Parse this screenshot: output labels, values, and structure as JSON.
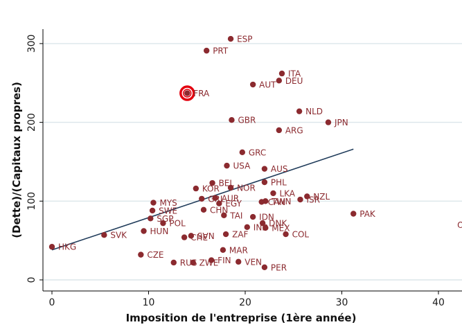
{
  "chart_data": {
    "type": "scatter",
    "xlabel": "Imposition de l'entreprise (1ère année)",
    "ylabel": "(Dette)/(Capitaux propres)",
    "xlim": [
      -1.8,
      41.5
    ],
    "ylim": [
      -4,
      320
    ],
    "x_ticks": [
      0,
      10,
      20,
      30,
      40
    ],
    "y_ticks": [
      0,
      100,
      200,
      300
    ],
    "grid": "horizontal",
    "colors": {
      "point": "#8b2a2f",
      "label": "#8b2a2f",
      "fit_line": "#1f3b5a",
      "highlight": "#e3000f",
      "grid": "#dce6ea",
      "plot_bg": "#ffffff"
    },
    "fit_line": {
      "x": [
        0,
        31.2
      ],
      "y": [
        38,
        166
      ]
    },
    "highlight": "FRA",
    "points": [
      {
        "label": "ESP",
        "x": 18.5,
        "y": 306
      },
      {
        "label": "PRT",
        "x": 16.0,
        "y": 291
      },
      {
        "label": "ITA",
        "x": 23.8,
        "y": 262
      },
      {
        "label": "DEU",
        "x": 23.5,
        "y": 253
      },
      {
        "label": "AUT",
        "x": 20.8,
        "y": 248
      },
      {
        "label": "FRA",
        "x": 14.0,
        "y": 237
      },
      {
        "label": "NLD",
        "x": 25.6,
        "y": 214
      },
      {
        "label": "GBR",
        "x": 18.6,
        "y": 203
      },
      {
        "label": "JPN",
        "x": 28.6,
        "y": 200
      },
      {
        "label": "ARG",
        "x": 23.5,
        "y": 190
      },
      {
        "label": "GRC",
        "x": 19.7,
        "y": 162
      },
      {
        "label": "USA",
        "x": 18.1,
        "y": 145
      },
      {
        "label": "AUS",
        "x": 22.0,
        "y": 141
      },
      {
        "label": "BEL",
        "x": 16.6,
        "y": 123
      },
      {
        "label": "PHL",
        "x": 22.0,
        "y": 124
      },
      {
        "label": "KOR",
        "x": 14.9,
        "y": 116
      },
      {
        "label": "NOR",
        "x": 18.5,
        "y": 117
      },
      {
        "label": "LKA",
        "x": 22.9,
        "y": 110
      },
      {
        "label": "NZL",
        "x": 26.4,
        "y": 106
      },
      {
        "label": "AUR",
        "x": 16.9,
        "y": 104
      },
      {
        "label": "ISR",
        "x": 25.7,
        "y": 102
      },
      {
        "label": "GRL",
        "x": 15.5,
        "y": 103
      },
      {
        "label": "TWN",
        "x": 22.1,
        "y": 100
      },
      {
        "label": "CAN",
        "x": 21.7,
        "y": 99
      },
      {
        "label": "EGY",
        "x": 17.3,
        "y": 97
      },
      {
        "label": "MYS",
        "x": 10.5,
        "y": 98
      },
      {
        "label": "SWE",
        "x": 10.4,
        "y": 88
      },
      {
        "label": "CHN",
        "x": 15.7,
        "y": 89
      },
      {
        "label": "PAK",
        "x": 31.2,
        "y": 84
      },
      {
        "label": "TAI",
        "x": 17.8,
        "y": 82
      },
      {
        "label": "IDN",
        "x": 20.8,
        "y": 80
      },
      {
        "label": "SGP",
        "x": 10.2,
        "y": 78
      },
      {
        "label": "DNK",
        "x": 21.8,
        "y": 72
      },
      {
        "label": "POL",
        "x": 11.5,
        "y": 72
      },
      {
        "label": "IND",
        "x": 20.2,
        "y": 67
      },
      {
        "label": "MEX",
        "x": 22.1,
        "y": 66
      },
      {
        "label": "HUN",
        "x": 9.5,
        "y": 62
      },
      {
        "label": "ZAF",
        "x": 18.0,
        "y": 58
      },
      {
        "label": "COL",
        "x": 24.2,
        "y": 58
      },
      {
        "label": "SVK",
        "x": 5.4,
        "y": 57
      },
      {
        "label": "SVN",
        "x": 14.4,
        "y": 56
      },
      {
        "label": "CHE",
        "x": 13.7,
        "y": 54
      },
      {
        "label": "HKG",
        "x": 0.0,
        "y": 42
      },
      {
        "label": "MAR",
        "x": 17.7,
        "y": 38
      },
      {
        "label": "CZE",
        "x": 9.2,
        "y": 32
      },
      {
        "label": "FIN",
        "x": 16.5,
        "y": 25
      },
      {
        "label": "VEN",
        "x": 19.3,
        "y": 23
      },
      {
        "label": "RUS",
        "x": 12.6,
        "y": 22
      },
      {
        "label": "ZWE",
        "x": 14.6,
        "y": 22
      },
      {
        "label": "PER",
        "x": 22.0,
        "y": 16
      },
      {
        "label": "OL",
        "x": 41.3,
        "y": 70
      }
    ]
  }
}
